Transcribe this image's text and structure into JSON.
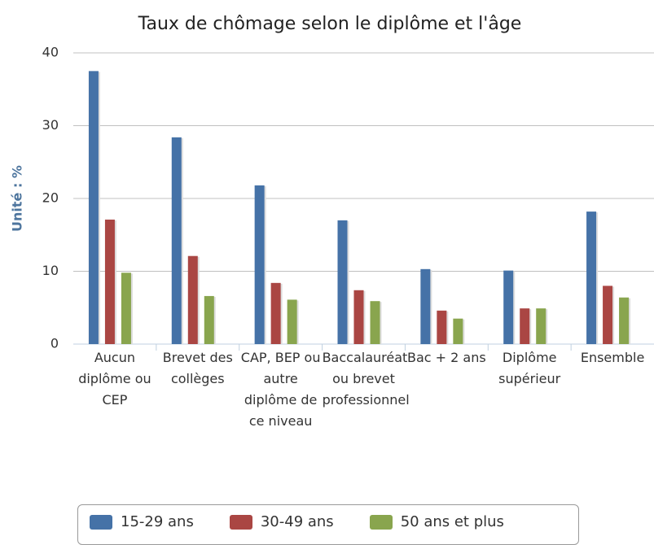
{
  "chart_data": {
    "type": "bar",
    "title": "Taux de chômage selon le diplôme et l'âge",
    "y_label": "Unité : %",
    "categories": [
      "Aucun diplôme ou CEP",
      "Brevet des collèges",
      "CAP, BEP ou autre diplôme de ce niveau",
      "Baccalauréat ou brevet professionnel",
      "Bac + 2 ans",
      "Diplôme supérieur",
      "Ensemble"
    ],
    "series": [
      {
        "name": "15-29 ans",
        "color": "#4572a7",
        "values": [
          37.5,
          28.4,
          21.8,
          17.0,
          10.3,
          10.1,
          18.2
        ]
      },
      {
        "name": "30-49 ans",
        "color": "#aa4643",
        "values": [
          17.1,
          12.1,
          8.4,
          7.4,
          4.6,
          4.9,
          8.0
        ]
      },
      {
        "name": "50 ans et plus",
        "color": "#89a54e",
        "values": [
          9.8,
          6.6,
          6.1,
          5.9,
          3.5,
          4.9,
          6.4
        ]
      }
    ],
    "ylim": [
      0,
      40
    ],
    "yticks": [
      0,
      10,
      20,
      30,
      40
    ],
    "grid": true,
    "legend": "bottom"
  }
}
